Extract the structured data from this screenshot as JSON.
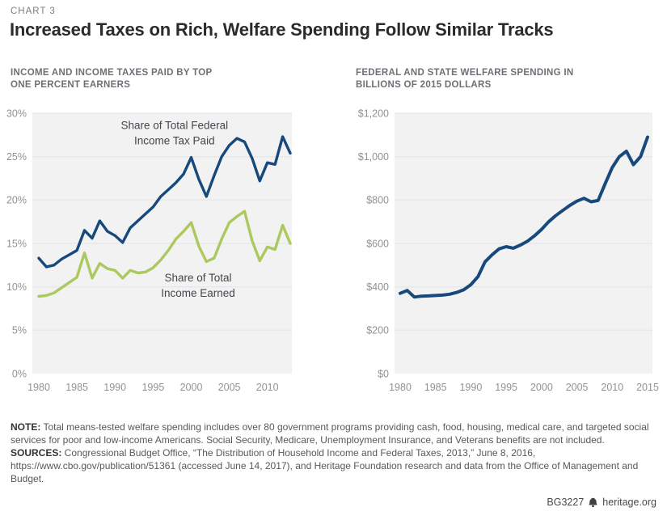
{
  "page": {
    "kicker": "CHART 3",
    "title": "Increased Taxes on Rich, Welfare Spending Follow Similar Tracks"
  },
  "style": {
    "plot_bg": "#f2f2f3",
    "grid": "#e3e4e5",
    "blue": "#17497c",
    "green": "#abc95e"
  },
  "note": {
    "label": "NOTE:",
    "text": " Total means-tested welfare spending includes over 80 government programs providing cash, food, housing, medical care, and targeted social services for poor and low-income Americans. Social Security, Medicare, Unemployment Insurance, and Veterans benefits are not included."
  },
  "sources": {
    "label": "SOURCES:",
    "text": " Congressional Budget Office, “The Distribution of Household Income and Federal Taxes, 2013,” June 8, 2016, https://www.cbo.gov/publication/51361 (accessed June 14, 2017), and Heritage Foundation research and data from the Office of Management and Budget."
  },
  "footer": {
    "doc_id": "BG3227",
    "site": "heritage.org",
    "logo": "heritage-liberty-bell"
  },
  "chart_data": [
    {
      "id": "left",
      "type": "line",
      "title": "INCOME AND INCOME TAXES PAID BY TOP ONE PERCENT EARNERS",
      "xlim": [
        1980,
        2013
      ],
      "ylim": [
        0,
        30
      ],
      "grid": true,
      "x": [
        1980,
        1981,
        1982,
        1983,
        1984,
        1985,
        1986,
        1987,
        1988,
        1989,
        1990,
        1991,
        1992,
        1993,
        1994,
        1995,
        1996,
        1997,
        1998,
        1999,
        2000,
        2001,
        2002,
        2003,
        2004,
        2005,
        2006,
        2007,
        2008,
        2009,
        2010,
        2011,
        2012,
        2013
      ],
      "series": [
        {
          "id": "tax-share",
          "name": "Share of Total Federal Income Tax Paid",
          "color": "#17497c",
          "values": [
            13.3,
            12.3,
            12.5,
            13.2,
            13.7,
            14.2,
            16.5,
            15.6,
            17.6,
            16.4,
            15.9,
            15.1,
            16.8,
            17.6,
            18.4,
            19.2,
            20.4,
            21.2,
            22.0,
            23.0,
            24.9,
            22.4,
            20.4,
            22.8,
            25.0,
            26.3,
            27.1,
            26.7,
            24.8,
            22.2,
            24.3,
            24.1,
            27.3,
            25.4
          ]
        },
        {
          "id": "income-share",
          "name": "Share of Total Income Earned",
          "color": "#abc95e",
          "values": [
            8.9,
            9.0,
            9.3,
            9.9,
            10.5,
            11.1,
            13.9,
            11.0,
            12.7,
            12.1,
            11.9,
            11.0,
            11.9,
            11.6,
            11.7,
            12.2,
            13.1,
            14.2,
            15.5,
            16.4,
            17.4,
            14.7,
            12.9,
            13.3,
            15.5,
            17.4,
            18.1,
            18.7,
            15.3,
            13.0,
            14.6,
            14.3,
            17.1,
            15.0
          ]
        }
      ],
      "yticks": [
        {
          "v": 0,
          "label": "0%"
        },
        {
          "v": 5,
          "label": "5%"
        },
        {
          "v": 10,
          "label": "10%"
        },
        {
          "v": 15,
          "label": "15%"
        },
        {
          "v": 20,
          "label": "20%"
        },
        {
          "v": 25,
          "label": "25%"
        },
        {
          "v": 30,
          "label": "30%"
        }
      ],
      "xticks": [
        {
          "v": 1980,
          "label": "1980"
        },
        {
          "v": 1985,
          "label": "1985"
        },
        {
          "v": 1990,
          "label": "1990"
        },
        {
          "v": 1995,
          "label": "1995"
        },
        {
          "v": 2000,
          "label": "2000"
        },
        {
          "v": 2005,
          "label": "2005"
        },
        {
          "v": 2010,
          "label": "2010"
        }
      ],
      "annotations": [
        {
          "lines": [
            "Share of Total Federal",
            "Income Tax Paid"
          ],
          "x": 1997.8,
          "y": [
            28.2,
            26.4
          ]
        },
        {
          "lines": [
            "Share of Total",
            "Income Earned"
          ],
          "x": 2000.9,
          "y": [
            10.6,
            8.85
          ]
        }
      ]
    },
    {
      "id": "right",
      "type": "line",
      "title": "FEDERAL AND STATE WELFARE SPENDING IN BILLIONS OF 2015 DOLLARS",
      "xlim": [
        1980,
        2015
      ],
      "ylim": [
        0,
        1200
      ],
      "grid": true,
      "x": [
        1980,
        1981,
        1982,
        1983,
        1984,
        1985,
        1986,
        1987,
        1988,
        1989,
        1990,
        1991,
        1992,
        1993,
        1994,
        1995,
        1996,
        1997,
        1998,
        1999,
        2000,
        2001,
        2002,
        2003,
        2004,
        2005,
        2006,
        2007,
        2008,
        2009,
        2010,
        2011,
        2012,
        2013,
        2014,
        2015
      ],
      "series": [
        {
          "id": "welfare-spending",
          "name": "Federal and State Welfare Spending",
          "color": "#17497c",
          "values": [
            370,
            383,
            353,
            357,
            358,
            360,
            362,
            366,
            374,
            387,
            410,
            447,
            515,
            548,
            575,
            585,
            578,
            592,
            610,
            635,
            665,
            700,
            728,
            752,
            775,
            795,
            808,
            792,
            798,
            875,
            950,
            1000,
            1025,
            963,
            1000,
            1090
          ]
        }
      ],
      "yticks": [
        {
          "v": 0,
          "label": "$0"
        },
        {
          "v": 200,
          "label": "$200"
        },
        {
          "v": 400,
          "label": "$400"
        },
        {
          "v": 600,
          "label": "$600"
        },
        {
          "v": 800,
          "label": "$800"
        },
        {
          "v": 1000,
          "label": "$1,000"
        },
        {
          "v": 1200,
          "label": "$1,200"
        }
      ],
      "xticks": [
        {
          "v": 1980,
          "label": "1980"
        },
        {
          "v": 1985,
          "label": "1985"
        },
        {
          "v": 1990,
          "label": "1990"
        },
        {
          "v": 1995,
          "label": "1995"
        },
        {
          "v": 2000,
          "label": "2000"
        },
        {
          "v": 2005,
          "label": "2005"
        },
        {
          "v": 2010,
          "label": "2010"
        },
        {
          "v": 2015,
          "label": "2015"
        }
      ],
      "annotations": []
    }
  ]
}
